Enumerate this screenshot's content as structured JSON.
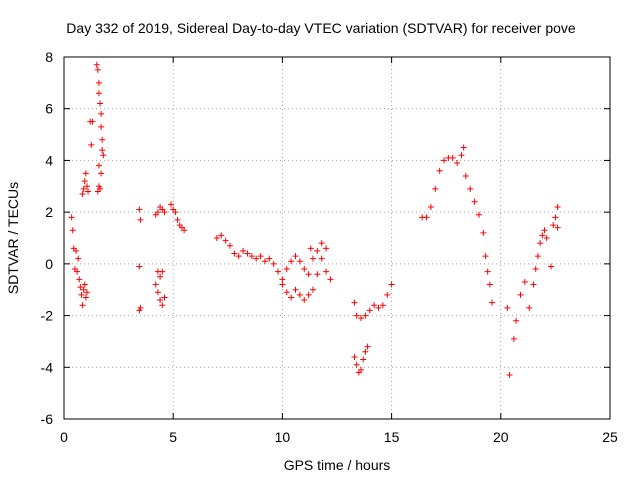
{
  "chart_data": {
    "type": "scatter",
    "title": "Day 332 of 2019, Sidereal Day-to-day VTEC variation (SDTVAR) for receiver pove",
    "xlabel": "GPS time / hours",
    "ylabel": "SDTVAR / TECUs",
    "xlim": [
      0,
      25
    ],
    "ylim": [
      -6,
      8
    ],
    "xticks": [
      "0",
      "5",
      "10",
      "15",
      "20",
      "25"
    ],
    "yticks": [
      "-6",
      "-4",
      "-2",
      "0",
      "2",
      "4",
      "6",
      "8"
    ],
    "grid": true,
    "marker": "plus",
    "marker_color": "#ff0000",
    "segments": [
      {
        "name": "seg1",
        "points": [
          [
            0.35,
            1.8
          ],
          [
            0.4,
            1.3
          ],
          [
            0.45,
            0.6
          ],
          [
            0.5,
            -0.2
          ],
          [
            0.55,
            0.5
          ],
          [
            0.6,
            -0.3
          ],
          [
            0.65,
            0.2
          ],
          [
            0.7,
            -0.6
          ],
          [
            0.75,
            -0.9
          ],
          [
            0.8,
            -1.2
          ],
          [
            0.85,
            -1.6
          ],
          [
            0.9,
            -1.0
          ],
          [
            0.95,
            -0.8
          ],
          [
            1.0,
            -1.3
          ],
          [
            1.05,
            -1.1
          ]
        ]
      },
      {
        "name": "seg2",
        "points": [
          [
            0.85,
            2.7
          ],
          [
            0.9,
            2.9
          ],
          [
            0.95,
            3.2
          ],
          [
            1.0,
            3.5
          ],
          [
            1.05,
            3.0
          ],
          [
            1.1,
            2.8
          ]
        ]
      },
      {
        "name": "seg3",
        "points": [
          [
            1.2,
            5.5
          ],
          [
            1.3,
            5.5
          ],
          [
            1.25,
            4.6
          ]
        ]
      },
      {
        "name": "seg4",
        "points": [
          [
            1.5,
            7.7
          ],
          [
            1.55,
            7.5
          ],
          [
            1.6,
            7.0
          ],
          [
            1.6,
            6.6
          ],
          [
            1.65,
            6.2
          ],
          [
            1.7,
            5.8
          ],
          [
            1.7,
            5.3
          ],
          [
            1.75,
            4.8
          ],
          [
            1.75,
            4.4
          ],
          [
            1.8,
            4.2
          ],
          [
            1.6,
            3.8
          ],
          [
            1.7,
            3.5
          ],
          [
            1.6,
            3.0
          ],
          [
            1.55,
            2.8
          ],
          [
            1.65,
            2.9
          ]
        ]
      },
      {
        "name": "seg5",
        "points": [
          [
            3.45,
            2.1
          ],
          [
            3.5,
            1.7
          ],
          [
            3.45,
            -0.1
          ],
          [
            3.5,
            -1.7
          ],
          [
            3.45,
            -1.8
          ]
        ]
      },
      {
        "name": "seg6",
        "points": [
          [
            4.2,
            1.9
          ],
          [
            4.3,
            2.0
          ],
          [
            4.4,
            2.2
          ],
          [
            4.5,
            2.1
          ],
          [
            4.6,
            2.0
          ],
          [
            4.3,
            -0.3
          ],
          [
            4.4,
            -0.5
          ],
          [
            4.5,
            -0.3
          ],
          [
            4.2,
            -0.8
          ],
          [
            4.3,
            -1.1
          ],
          [
            4.4,
            -1.4
          ],
          [
            4.5,
            -1.6
          ],
          [
            4.6,
            -1.3
          ]
        ]
      },
      {
        "name": "seg7",
        "points": [
          [
            4.9,
            2.3
          ],
          [
            5.0,
            2.1
          ],
          [
            5.1,
            2.0
          ],
          [
            5.2,
            1.7
          ],
          [
            5.3,
            1.5
          ],
          [
            5.4,
            1.4
          ],
          [
            5.5,
            1.3
          ]
        ]
      },
      {
        "name": "seg8",
        "points": [
          [
            7.0,
            1.0
          ],
          [
            7.2,
            1.1
          ],
          [
            7.4,
            0.9
          ],
          [
            7.6,
            0.7
          ],
          [
            7.8,
            0.4
          ],
          [
            8.0,
            0.3
          ],
          [
            8.2,
            0.5
          ],
          [
            8.4,
            0.4
          ],
          [
            8.6,
            0.3
          ],
          [
            8.8,
            0.2
          ],
          [
            9.0,
            0.3
          ],
          [
            9.2,
            0.1
          ],
          [
            9.4,
            0.2
          ],
          [
            9.6,
            0.0
          ],
          [
            9.8,
            -0.3
          ],
          [
            10.0,
            -0.6
          ],
          [
            10.2,
            -0.2
          ],
          [
            10.4,
            0.1
          ],
          [
            10.6,
            0.3
          ],
          [
            10.8,
            0.1
          ],
          [
            11.0,
            -0.2
          ],
          [
            11.2,
            -0.4
          ],
          [
            11.4,
            0.2
          ],
          [
            11.6,
            0.5
          ],
          [
            11.8,
            0.2
          ],
          [
            12.0,
            -0.3
          ],
          [
            12.2,
            -0.6
          ]
        ]
      },
      {
        "name": "seg9",
        "points": [
          [
            10.0,
            -0.8
          ],
          [
            10.2,
            -1.1
          ],
          [
            10.4,
            -1.3
          ],
          [
            10.6,
            -1.0
          ],
          [
            10.8,
            -1.2
          ],
          [
            11.0,
            -1.4
          ],
          [
            11.2,
            -1.2
          ],
          [
            11.4,
            -1.0
          ],
          [
            11.6,
            -0.4
          ],
          [
            11.8,
            0.8
          ],
          [
            12.0,
            0.6
          ],
          [
            11.3,
            0.6
          ]
        ]
      },
      {
        "name": "seg10",
        "points": [
          [
            13.3,
            -1.5
          ],
          [
            13.4,
            -2.0
          ],
          [
            13.6,
            -2.1
          ],
          [
            13.8,
            -2.0
          ],
          [
            14.0,
            -1.8
          ],
          [
            14.2,
            -1.6
          ],
          [
            14.4,
            -1.7
          ],
          [
            14.6,
            -1.6
          ],
          [
            14.8,
            -1.2
          ],
          [
            15.0,
            -0.8
          ]
        ]
      },
      {
        "name": "seg11",
        "points": [
          [
            13.3,
            -3.6
          ],
          [
            13.4,
            -3.9
          ],
          [
            13.5,
            -4.2
          ],
          [
            13.6,
            -4.1
          ],
          [
            13.7,
            -3.7
          ],
          [
            13.8,
            -3.4
          ],
          [
            13.9,
            -3.2
          ]
        ]
      },
      {
        "name": "seg12",
        "points": [
          [
            16.4,
            1.8
          ],
          [
            16.6,
            1.8
          ],
          [
            16.8,
            2.2
          ],
          [
            17.0,
            2.9
          ],
          [
            17.2,
            3.6
          ],
          [
            17.4,
            4.0
          ],
          [
            17.6,
            4.1
          ],
          [
            17.8,
            4.1
          ],
          [
            18.0,
            3.9
          ],
          [
            18.2,
            4.2
          ],
          [
            18.3,
            4.5
          ],
          [
            18.4,
            3.4
          ],
          [
            18.6,
            2.9
          ],
          [
            18.8,
            2.4
          ],
          [
            19.0,
            1.9
          ],
          [
            19.2,
            1.2
          ],
          [
            19.3,
            0.3
          ],
          [
            19.4,
            -0.3
          ],
          [
            19.5,
            -0.8
          ],
          [
            19.6,
            -1.5
          ]
        ]
      },
      {
        "name": "seg13",
        "points": [
          [
            20.3,
            -1.7
          ],
          [
            20.4,
            -4.3
          ],
          [
            20.6,
            -2.9
          ],
          [
            20.7,
            -2.2
          ],
          [
            20.9,
            -1.2
          ],
          [
            21.1,
            -0.7
          ],
          [
            21.3,
            -1.7
          ],
          [
            21.5,
            -0.8
          ],
          [
            21.6,
            -0.2
          ],
          [
            21.7,
            0.3
          ],
          [
            21.8,
            0.8
          ],
          [
            21.9,
            1.1
          ],
          [
            22.0,
            1.3
          ],
          [
            22.1,
            1.0
          ],
          [
            22.3,
            -0.1
          ],
          [
            22.4,
            1.5
          ],
          [
            22.5,
            1.8
          ],
          [
            22.6,
            2.2
          ],
          [
            22.6,
            1.4
          ]
        ]
      }
    ]
  }
}
